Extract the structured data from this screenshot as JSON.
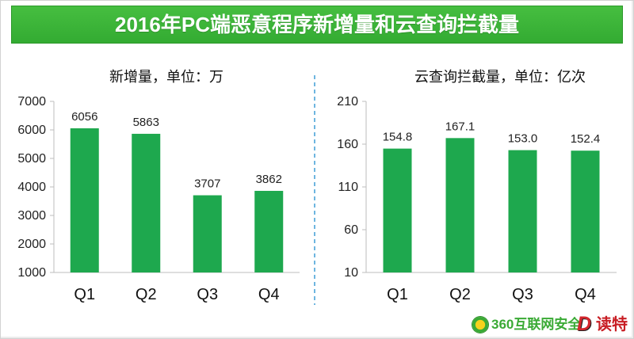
{
  "title": "2016年PC端恶意程序新增量和云查询拦截量",
  "colors": {
    "banner": "#3bb43a",
    "bar": "#1ea84e",
    "axis": "#bdbdbd",
    "divider": "#4aa3d8",
    "logo_green": "#3aaa35",
    "watermark_red": "#d4262c"
  },
  "chart_data": [
    {
      "type": "bar",
      "title": "新增量，单位：万",
      "categories": [
        "Q1",
        "Q2",
        "Q3",
        "Q4"
      ],
      "values": [
        6056,
        5863,
        3707,
        3862
      ],
      "data_labels": [
        "6056",
        "5863",
        "3707",
        "3862"
      ],
      "ylim": [
        1000,
        7000
      ],
      "yticks": [
        1000,
        2000,
        3000,
        4000,
        5000,
        6000,
        7000
      ],
      "grid": false,
      "show_legend": false
    },
    {
      "type": "bar",
      "title": "云查询拦截量，单位：亿次",
      "categories": [
        "Q1",
        "Q2",
        "Q3",
        "Q4"
      ],
      "values": [
        154.8,
        167.1,
        153.0,
        152.4
      ],
      "data_labels": [
        "154.8",
        "167.1",
        "153.0",
        "152.4"
      ],
      "ylim": [
        10,
        210
      ],
      "yticks": [
        10,
        60,
        110,
        160,
        210
      ],
      "grid": false,
      "show_legend": false
    }
  ],
  "logo": {
    "icon": "360-shield-icon",
    "text": "360互联网安全",
    "watermark_mark": "D",
    "watermark_text": "读特"
  }
}
